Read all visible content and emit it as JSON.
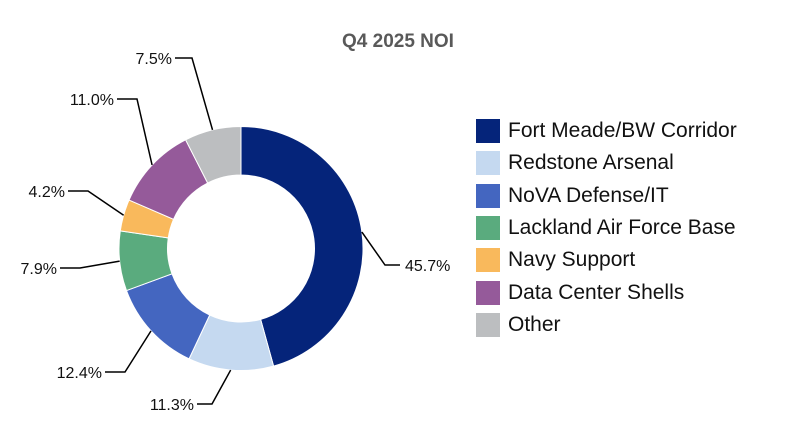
{
  "chart_data": {
    "type": "pie",
    "donut": true,
    "title": "Q4 2025 NOI",
    "categories": [
      "Fort Meade/BW Corridor",
      "Redstone Arsenal",
      "NoVA Defense/IT",
      "Lackland Air Force Base",
      "Navy Support",
      "Data Center Shells",
      "Other"
    ],
    "values": [
      45.7,
      11.3,
      12.4,
      7.9,
      4.2,
      11.0,
      7.5
    ],
    "labels": [
      "45.7%",
      "11.3%",
      "12.4%",
      "7.9%",
      "4.2%",
      "11.0%",
      "7.5%"
    ],
    "colors": [
      "#05247a",
      "#c5d9f0",
      "#4466c0",
      "#5aab7e",
      "#f9b95c",
      "#955a9a",
      "#bcbec0"
    ],
    "legend_position": "right"
  }
}
